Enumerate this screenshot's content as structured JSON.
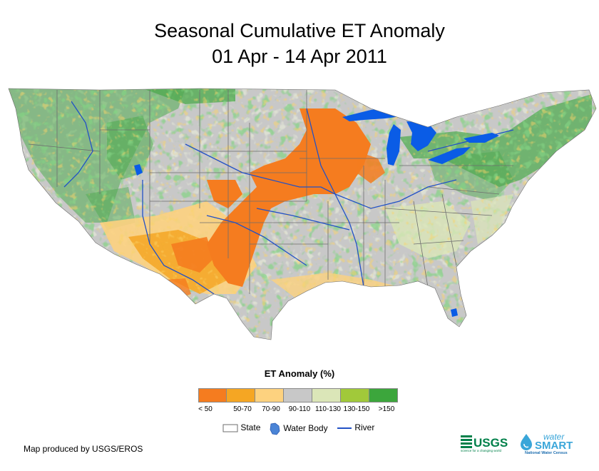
{
  "title_line1": "Seasonal Cumulative ET Anomaly",
  "title_line2": "01 Apr - 14 Apr 2011",
  "legend": {
    "title": "ET Anomaly (%)",
    "classes": [
      {
        "label": "< 50",
        "color": "#f57c1f"
      },
      {
        "label": "50-70",
        "color": "#f5a623"
      },
      {
        "label": "70-90",
        "color": "#fdd27f"
      },
      {
        "label": "90-110",
        "color": "#c8c8c8"
      },
      {
        "label": "110-130",
        "color": "#dbe6b8"
      },
      {
        "label": "130-150",
        "color": "#a1c93a"
      },
      {
        "label": ">150",
        "color": "#3ca63c"
      }
    ],
    "symbols": {
      "state": "State",
      "water_body": "Water Body",
      "river": "River"
    }
  },
  "colors": {
    "water": "#0a5ce6",
    "river": "#2251c6",
    "state_line": "#6e6e6e"
  },
  "credit": "Map produced by USGS/EROS",
  "logos": {
    "usgs": "USGS",
    "usgs_tagline": "science for a changing world",
    "watersmart_top": "water",
    "watersmart_main": "SMART",
    "watersmart_sub": "National Water Census"
  }
}
